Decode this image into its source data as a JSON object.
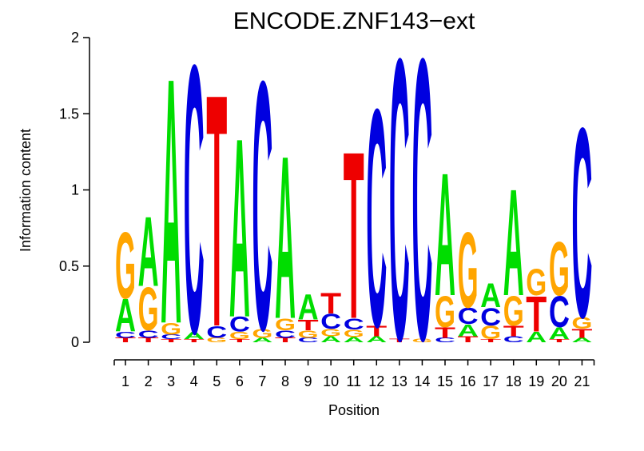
{
  "title": "ENCODE.ZNF143−ext",
  "y_axis": {
    "label": "Information content",
    "min": 0,
    "max": 2,
    "ticks": [
      {
        "label": "0",
        "value": 0
      },
      {
        "label": "0.5",
        "value": 0.5
      },
      {
        "label": "1",
        "value": 1
      },
      {
        "label": "1.5",
        "value": 1.5
      },
      {
        "label": "2",
        "value": 2
      }
    ]
  },
  "x_axis": {
    "label": "Position",
    "ticks": [
      "1",
      "2",
      "3",
      "4",
      "5",
      "6",
      "7",
      "8",
      "9",
      "10",
      "11",
      "12",
      "13",
      "14",
      "15",
      "16",
      "17",
      "18",
      "19",
      "20",
      "21"
    ]
  },
  "chart_data": {
    "type": "sequence-logo",
    "title": "ENCODE.ZNF143−ext",
    "xlabel": "Position",
    "ylabel": "Information content",
    "ylim": [
      0,
      2
    ],
    "grid": false,
    "colors": {
      "A": "#00DD00",
      "C": "#0000E0",
      "G": "#FFA500",
      "T": "#EE0000"
    },
    "positions": [
      {
        "position": 1,
        "stack": [
          {
            "base": "T",
            "ic": 0.03
          },
          {
            "base": "C",
            "ic": 0.04
          },
          {
            "base": "A",
            "ic": 0.22
          },
          {
            "base": "G",
            "ic": 0.45
          }
        ]
      },
      {
        "position": 2,
        "stack": [
          {
            "base": "T",
            "ic": 0.03
          },
          {
            "base": "C",
            "ic": 0.05
          },
          {
            "base": "G",
            "ic": 0.29
          },
          {
            "base": "A",
            "ic": 0.47
          }
        ]
      },
      {
        "position": 3,
        "stack": [
          {
            "base": "T",
            "ic": 0.02
          },
          {
            "base": "C",
            "ic": 0.03
          },
          {
            "base": "G",
            "ic": 0.08
          },
          {
            "base": "A",
            "ic": 1.66
          }
        ]
      },
      {
        "position": 4,
        "stack": [
          {
            "base": "T",
            "ic": 0.02
          },
          {
            "base": "A",
            "ic": 0.05
          },
          {
            "base": "C",
            "ic": 1.81
          }
        ]
      },
      {
        "position": 5,
        "stack": [
          {
            "base": "G",
            "ic": 0.03
          },
          {
            "base": "C",
            "ic": 0.08
          },
          {
            "base": "T",
            "ic": 1.57
          }
        ]
      },
      {
        "position": 6,
        "stack": [
          {
            "base": "T",
            "ic": 0.02
          },
          {
            "base": "G",
            "ic": 0.05
          },
          {
            "base": "C",
            "ic": 0.1
          },
          {
            "base": "A",
            "ic": 1.21
          }
        ]
      },
      {
        "position": 7,
        "stack": [
          {
            "base": "A",
            "ic": 0.03
          },
          {
            "base": "G",
            "ic": 0.06
          },
          {
            "base": "C",
            "ic": 1.68
          }
        ]
      },
      {
        "position": 8,
        "stack": [
          {
            "base": "T",
            "ic": 0.03
          },
          {
            "base": "C",
            "ic": 0.05
          },
          {
            "base": "G",
            "ic": 0.08
          },
          {
            "base": "A",
            "ic": 1.1
          }
        ]
      },
      {
        "position": 9,
        "stack": [
          {
            "base": "C",
            "ic": 0.03
          },
          {
            "base": "G",
            "ic": 0.05
          },
          {
            "base": "T",
            "ic": 0.07
          },
          {
            "base": "A",
            "ic": 0.17
          }
        ]
      },
      {
        "position": 10,
        "stack": [
          {
            "base": "A",
            "ic": 0.04
          },
          {
            "base": "G",
            "ic": 0.05
          },
          {
            "base": "C",
            "ic": 0.1
          },
          {
            "base": "T",
            "ic": 0.14
          }
        ]
      },
      {
        "position": 11,
        "stack": [
          {
            "base": "A",
            "ic": 0.035
          },
          {
            "base": "G",
            "ic": 0.05
          },
          {
            "base": "C",
            "ic": 0.075
          },
          {
            "base": "T",
            "ic": 1.13
          }
        ]
      },
      {
        "position": 12,
        "stack": [
          {
            "base": "A",
            "ic": 0.04
          },
          {
            "base": "T",
            "ic": 0.07
          },
          {
            "base": "C",
            "ic": 1.47
          }
        ]
      },
      {
        "position": 13,
        "stack": [
          {
            "base": "T",
            "ic": 0.025
          },
          {
            "base": "C",
            "ic": 1.9
          }
        ]
      },
      {
        "position": 14,
        "stack": [
          {
            "base": "G",
            "ic": 0.025
          },
          {
            "base": "C",
            "ic": 1.9
          }
        ]
      },
      {
        "position": 15,
        "stack": [
          {
            "base": "C",
            "ic": 0.03
          },
          {
            "base": "T",
            "ic": 0.07
          },
          {
            "base": "G",
            "ic": 0.21
          },
          {
            "base": "A",
            "ic": 0.83
          }
        ]
      },
      {
        "position": 16,
        "stack": [
          {
            "base": "T",
            "ic": 0.04
          },
          {
            "base": "A",
            "ic": 0.08
          },
          {
            "base": "C",
            "ic": 0.11
          },
          {
            "base": "G",
            "ic": 0.51
          }
        ]
      },
      {
        "position": 17,
        "stack": [
          {
            "base": "T",
            "ic": 0.02
          },
          {
            "base": "G",
            "ic": 0.09
          },
          {
            "base": "C",
            "ic": 0.12
          },
          {
            "base": "A",
            "ic": 0.16
          }
        ]
      },
      {
        "position": 18,
        "stack": [
          {
            "base": "C",
            "ic": 0.04
          },
          {
            "base": "T",
            "ic": 0.07
          },
          {
            "base": "G",
            "ic": 0.2
          },
          {
            "base": "A",
            "ic": 0.72
          }
        ]
      },
      {
        "position": 19,
        "stack": [
          {
            "base": "A",
            "ic": 0.07
          },
          {
            "base": "T",
            "ic": 0.24
          },
          {
            "base": "G",
            "ic": 0.18
          }
        ]
      },
      {
        "position": 20,
        "stack": [
          {
            "base": "T",
            "ic": 0.02
          },
          {
            "base": "A",
            "ic": 0.08
          },
          {
            "base": "C",
            "ic": 0.21
          },
          {
            "base": "G",
            "ic": 0.36
          }
        ]
      },
      {
        "position": 21,
        "stack": [
          {
            "base": "A",
            "ic": 0.03
          },
          {
            "base": "T",
            "ic": 0.06
          },
          {
            "base": "G",
            "ic": 0.08
          },
          {
            "base": "C",
            "ic": 1.28
          }
        ]
      }
    ]
  }
}
